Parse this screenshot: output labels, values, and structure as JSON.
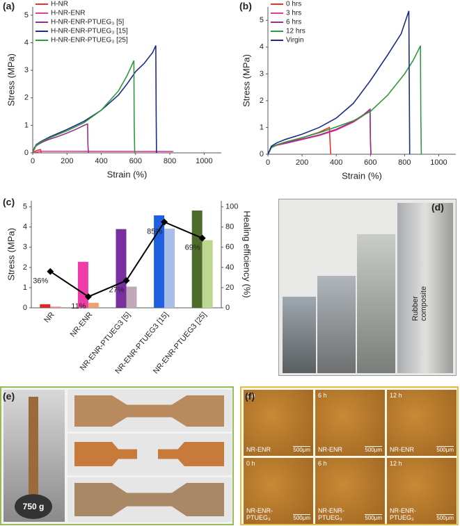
{
  "chart_data": [
    {
      "type": "line",
      "label": "(a)",
      "x_label": "Strain (%)",
      "y_label": "Stress (MPa)",
      "xlim": [
        0,
        1100
      ],
      "ylim": [
        0,
        5.3
      ],
      "xticks": [
        0,
        200,
        400,
        600,
        800,
        1000
      ],
      "yticks": [
        0,
        1,
        2,
        3,
        4,
        5
      ],
      "legend": "upper left",
      "series": [
        {
          "name": "H-NR",
          "color": "#e8322b",
          "x": [
            0,
            20,
            45,
            50
          ],
          "values": [
            0,
            0.08,
            0.12,
            0
          ]
        },
        {
          "name": "H-NR-ENR",
          "color": "#e5399b",
          "x": [
            0,
            50,
            820
          ],
          "values": [
            0,
            0.06,
            0.05
          ]
        },
        {
          "name": "H-NR-ENR-PTUEG₃ [5]",
          "color": "#9a2d8e",
          "x": [
            0,
            10,
            30,
            60,
            100,
            150,
            200,
            250,
            300,
            320,
            322,
            325
          ],
          "values": [
            0,
            0.2,
            0.3,
            0.4,
            0.5,
            0.6,
            0.72,
            0.85,
            1.0,
            1.05,
            0.3,
            0
          ]
        },
        {
          "name": "H-NR-ENR-PTUEG₃ [15]",
          "color": "#1c2a8a",
          "x": [
            0,
            20,
            50,
            100,
            200,
            300,
            400,
            500,
            550,
            600,
            650,
            700,
            718,
            720,
            722
          ],
          "values": [
            0,
            0.3,
            0.42,
            0.58,
            0.85,
            1.15,
            1.55,
            2.1,
            2.5,
            2.95,
            3.25,
            3.65,
            3.9,
            1.5,
            0
          ]
        },
        {
          "name": "H-NR-ENR-PTUEG₃ [25]",
          "color": "#2e9a3c",
          "x": [
            0,
            20,
            50,
            100,
            200,
            300,
            400,
            500,
            550,
            590,
            592,
            595
          ],
          "values": [
            0,
            0.28,
            0.4,
            0.55,
            0.8,
            1.1,
            1.55,
            2.25,
            2.8,
            3.35,
            1,
            0
          ]
        }
      ]
    },
    {
      "type": "line",
      "label": "(b)",
      "x_label": "Strain (%)",
      "y_label": "Stress (MPa)",
      "xlim": [
        0,
        1100
      ],
      "ylim": [
        0,
        5.5
      ],
      "xticks": [
        0,
        200,
        400,
        600,
        800,
        1000
      ],
      "yticks": [
        0,
        1,
        2,
        3,
        4,
        5
      ],
      "legend": "upper left",
      "series": [
        {
          "name": "0 hrs",
          "color": "#e8322b",
          "x": [
            0,
            20,
            50,
            100,
            200,
            300,
            360,
            365,
            368
          ],
          "values": [
            0,
            0.25,
            0.35,
            0.45,
            0.62,
            0.82,
            1.0,
            0.3,
            0
          ]
        },
        {
          "name": "3 hrs",
          "color": "#e5399b",
          "x": [
            0,
            20,
            50,
            100,
            200,
            300,
            400,
            500,
            560,
            598,
            600,
            603
          ],
          "values": [
            0,
            0.25,
            0.33,
            0.4,
            0.55,
            0.7,
            0.9,
            1.2,
            1.45,
            1.65,
            0.5,
            0
          ]
        },
        {
          "name": "6 hrs",
          "color": "#9a2d8e",
          "x": [
            0,
            20,
            50,
            100,
            200,
            300,
            400,
            500,
            560,
            598,
            600,
            603
          ],
          "values": [
            0,
            0.27,
            0.35,
            0.42,
            0.57,
            0.72,
            0.93,
            1.23,
            1.48,
            1.68,
            0.5,
            0
          ]
        },
        {
          "name": "12 hrs",
          "color": "#2e9a3c",
          "x": [
            0,
            20,
            50,
            100,
            200,
            300,
            400,
            500,
            600,
            700,
            800,
            850,
            893,
            895,
            898
          ],
          "values": [
            0,
            0.25,
            0.35,
            0.45,
            0.62,
            0.8,
            1.02,
            1.25,
            1.6,
            2.2,
            3.0,
            3.5,
            4.05,
            1.5,
            0
          ]
        },
        {
          "name": "Virgin",
          "color": "#1c2a8a",
          "x": [
            0,
            20,
            50,
            100,
            200,
            300,
            400,
            500,
            600,
            700,
            780,
            825,
            828,
            830
          ],
          "values": [
            0,
            0.3,
            0.42,
            0.55,
            0.75,
            1.0,
            1.35,
            1.9,
            2.75,
            3.7,
            4.5,
            5.35,
            2,
            0
          ]
        }
      ]
    },
    {
      "type": "bar",
      "label": "(c)",
      "y_label": "Stress (MPa)",
      "y2_label": "Healing efficiency (%)",
      "categories": [
        "NR",
        "NR-ENR",
        "NR-ENR-PTUEG3 [5]",
        "NR-ENR-PTUEG3 [15]",
        "NR-ENR-PTUEG3 [25]"
      ],
      "ylim": [
        0,
        5.3
      ],
      "yticks": [
        0,
        1,
        2,
        3,
        4,
        5
      ],
      "y2lim": [
        0,
        106
      ],
      "y2ticks": [
        0,
        20,
        40,
        60,
        80,
        100
      ],
      "series": [
        {
          "colors": [
            "#d42a2a",
            "#f03ca8",
            "#7a2fa0",
            "#1f5fe0",
            "#4f6b2c"
          ],
          "values": [
            0.18,
            2.28,
            3.9,
            4.58,
            4.82
          ]
        },
        {
          "colors": [
            "#f08a8a",
            "#f0a070",
            "#c0a8b8",
            "#a8bde8",
            "#bcd890"
          ],
          "values": [
            0.06,
            0.25,
            1.05,
            3.92,
            3.35
          ]
        },
        {
          "axis": "y2",
          "color": "#000000",
          "values": [
            36,
            11,
            27,
            85,
            69
          ],
          "value_labels": [
            "36%",
            "11%",
            "27%",
            "85%",
            "69%"
          ]
        }
      ]
    }
  ],
  "photos": {
    "d": {
      "label": "(d)",
      "annotation": "Rubber composite"
    },
    "e": {
      "label": "(e)",
      "weight": "750 g"
    },
    "f": {
      "label": "(f)",
      "tiles": [
        {
          "time": "0 h",
          "sample": "NR-ENR",
          "scale": "500μm"
        },
        {
          "time": "6 h",
          "sample": "NR-ENR",
          "scale": "500μm"
        },
        {
          "time": "12 h",
          "sample": "NR-ENR",
          "scale": "500μm"
        },
        {
          "time": "0 h",
          "sample": "NR-ENR-PTUEG₃",
          "scale": "500μm"
        },
        {
          "time": "6 h",
          "sample": "NR-ENR-PTUEG₃",
          "scale": "500μm"
        },
        {
          "time": "12 h",
          "sample": "NR-ENR-PTUEG₃",
          "scale": "500μm"
        }
      ]
    }
  }
}
